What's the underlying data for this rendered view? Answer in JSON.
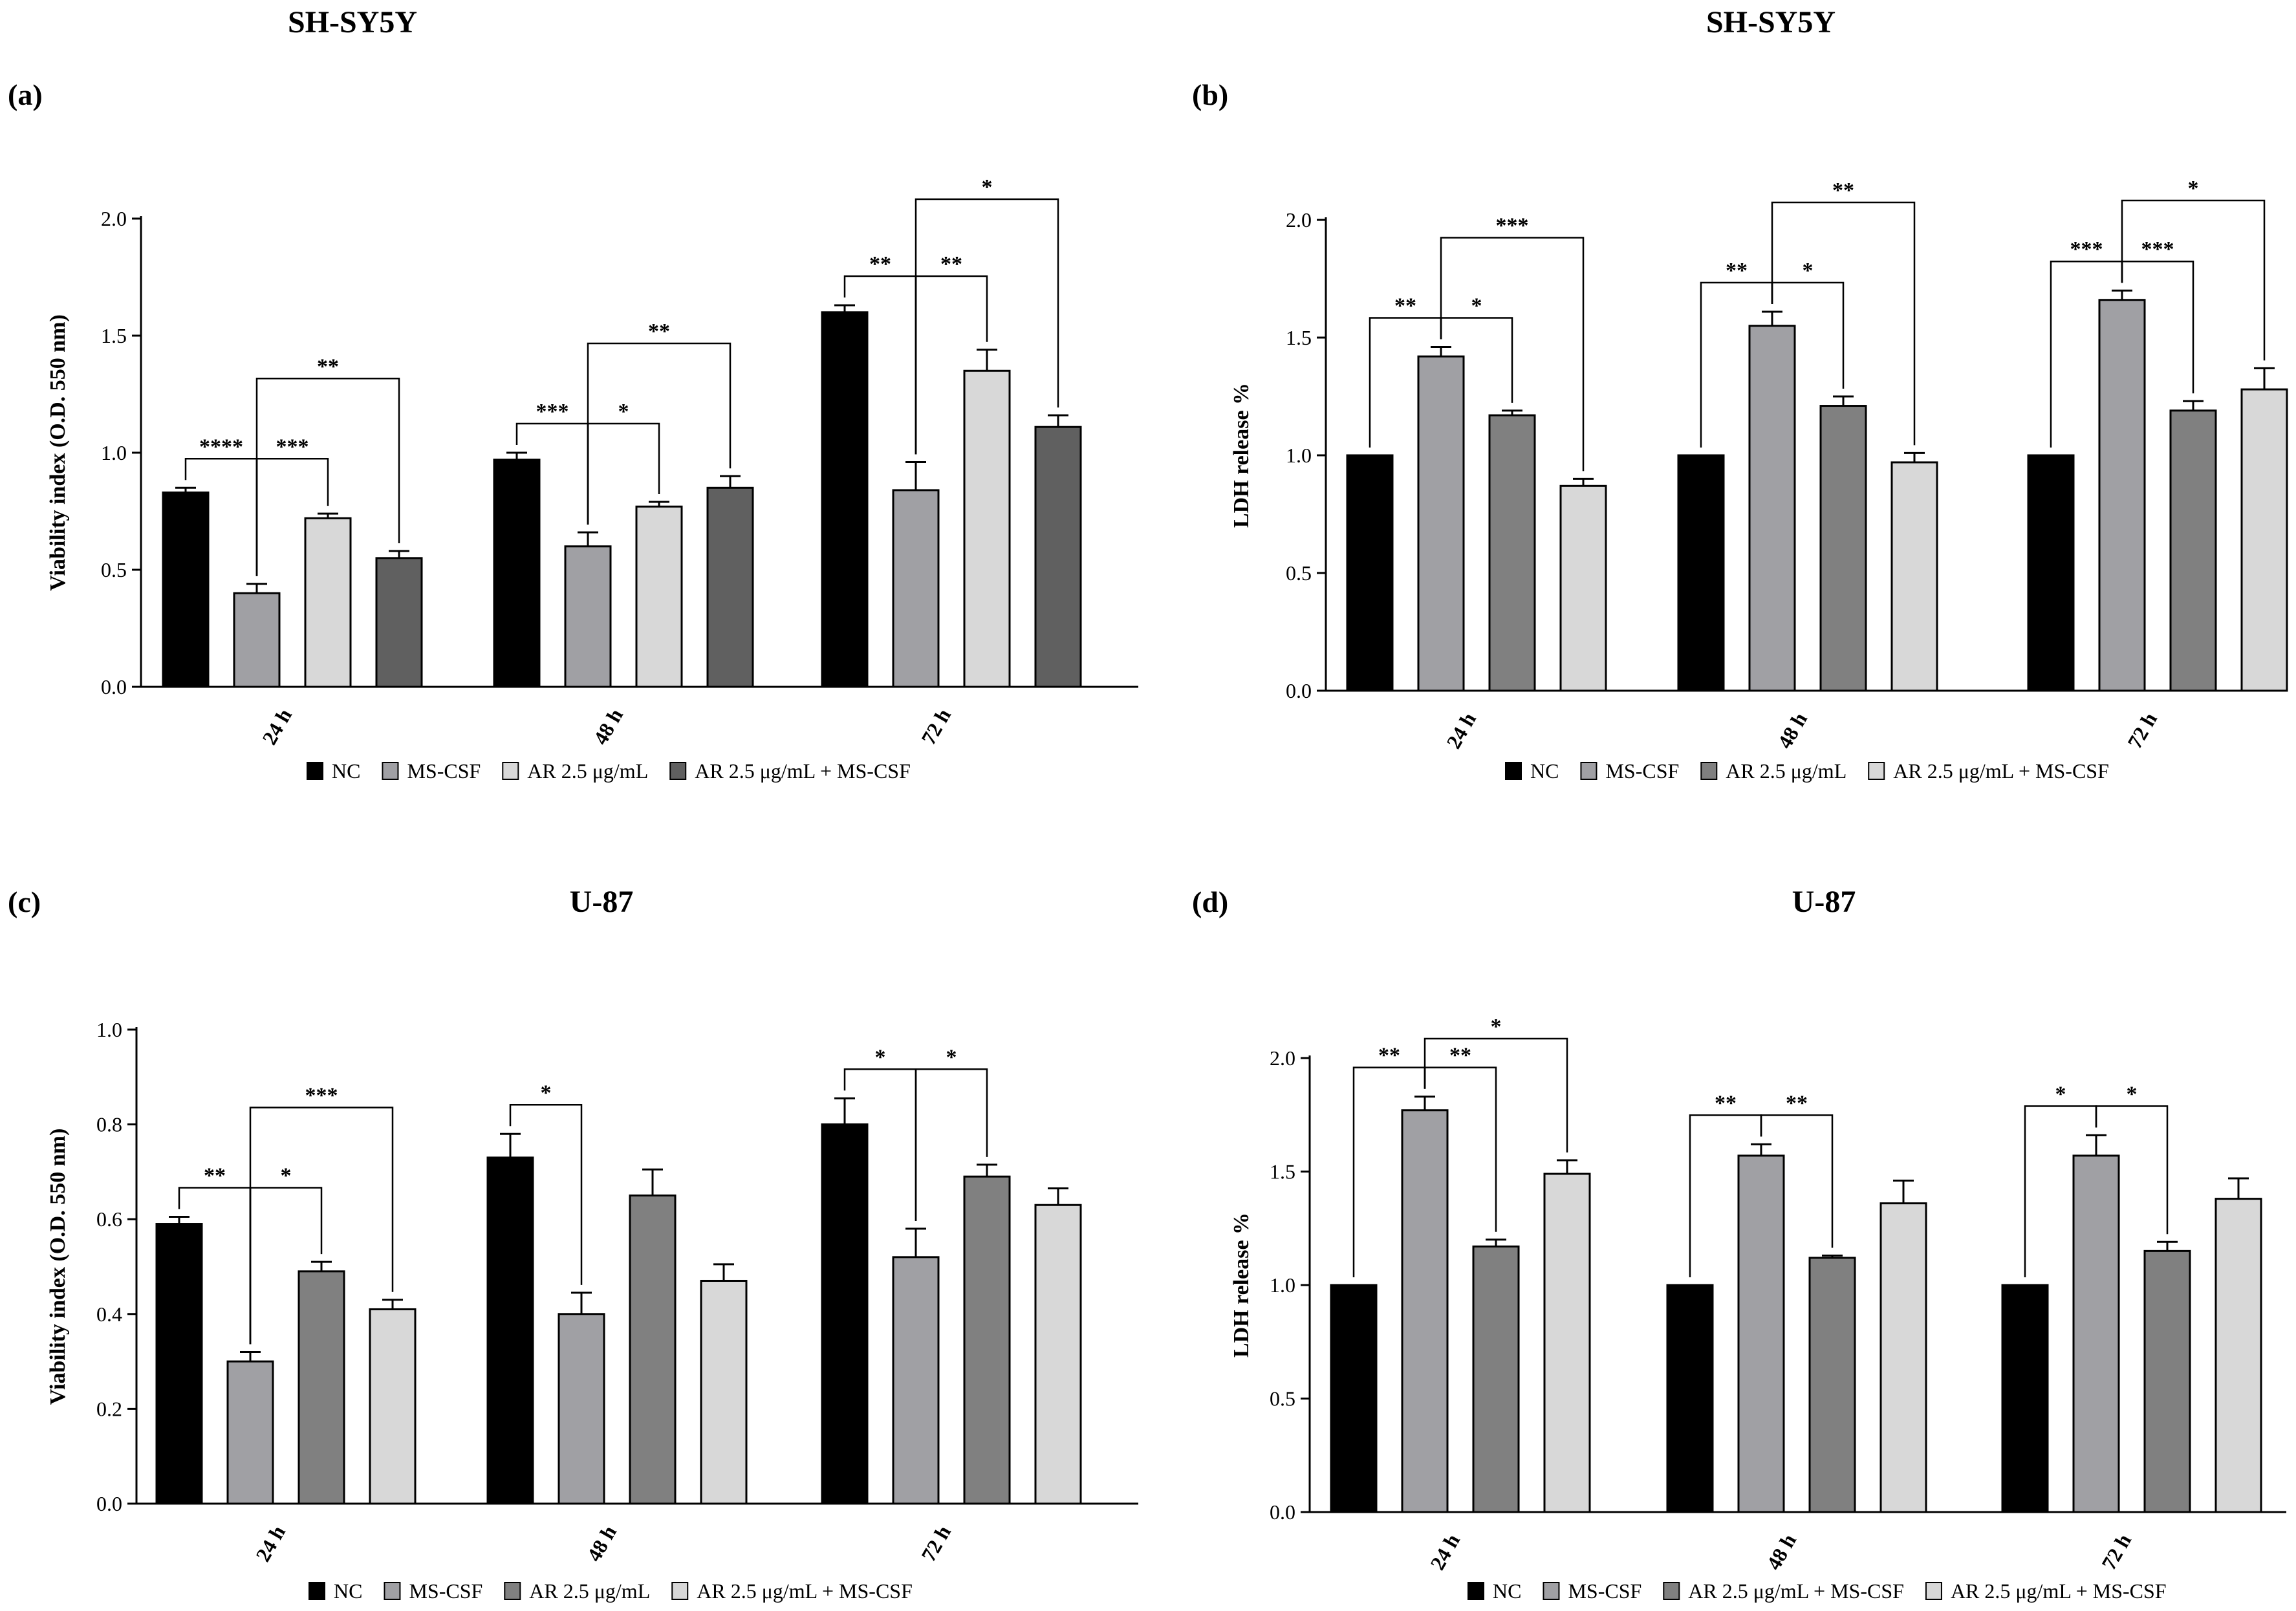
{
  "figure": {
    "panels": [
      {
        "letter": "(a)",
        "title": "SH-SY5Y"
      },
      {
        "letter": "(b)",
        "title": "SH-SY5Y"
      },
      {
        "letter": "(c)",
        "title": "U-87"
      },
      {
        "letter": "(d)",
        "title": "U-87"
      }
    ]
  },
  "chart_data": [
    {
      "type": "bar",
      "title": "SH-SY5Y",
      "panel_label": "(a)",
      "xlabel": "",
      "ylabel": "Viability index (O.D. 550 nm)",
      "ylim": [
        0,
        2.0
      ],
      "yticks": [
        "0.0",
        "0.5",
        "1.0",
        "1.5",
        "2.0"
      ],
      "categories": [
        "24 h",
        "48 h",
        "72 h"
      ],
      "series": [
        {
          "name": "NC",
          "color": "#000000",
          "values": [
            0.83,
            0.97,
            1.6
          ],
          "errors": [
            0.02,
            0.03,
            0.03
          ]
        },
        {
          "name": "MS-CSF",
          "color": "#a0a0a4",
          "values": [
            0.4,
            0.6,
            0.84
          ],
          "errors": [
            0.04,
            0.06,
            0.12
          ]
        },
        {
          "name": "AR 2.5 μg/mL",
          "color": "#d8d8d8",
          "values": [
            0.72,
            0.77,
            1.35
          ],
          "errors": [
            0.02,
            0.02,
            0.09
          ]
        },
        {
          "name": "AR 2.5 μg/mL + MS-CSF",
          "color": "#606060",
          "values": [
            0.55,
            0.85,
            1.11
          ],
          "errors": [
            0.03,
            0.05,
            0.05
          ]
        }
      ],
      "significance": [
        {
          "group": 0,
          "from": 0,
          "to": 1,
          "label": "****"
        },
        {
          "group": 0,
          "from": 1,
          "to": 2,
          "label": "***"
        },
        {
          "group": 0,
          "from": 1,
          "to": 3,
          "label": "**"
        },
        {
          "group": 1,
          "from": 0,
          "to": 1,
          "label": "***"
        },
        {
          "group": 1,
          "from": 1,
          "to": 2,
          "label": "*"
        },
        {
          "group": 1,
          "from": 1,
          "to": 3,
          "label": "**"
        },
        {
          "group": 2,
          "from": 0,
          "to": 1,
          "label": "**"
        },
        {
          "group": 2,
          "from": 1,
          "to": 2,
          "label": "**"
        },
        {
          "group": 2,
          "from": 1,
          "to": 3,
          "label": "*"
        }
      ],
      "legend_position": "bottom"
    },
    {
      "type": "bar",
      "title": "SH-SY5Y",
      "panel_label": "(b)",
      "xlabel": "",
      "ylabel": "LDH release %",
      "ylim": [
        0,
        2.0
      ],
      "yticks": [
        "0.0",
        "0.5",
        "1.0",
        "1.5",
        "2.0"
      ],
      "categories": [
        "24 h",
        "48 h",
        "72 h"
      ],
      "series": [
        {
          "name": "NC",
          "color": "#000000",
          "values": [
            1.0,
            1.0,
            1.0
          ],
          "errors": [
            0,
            0,
            0
          ]
        },
        {
          "name": "MS-CSF",
          "color": "#a0a0a4",
          "values": [
            1.42,
            1.55,
            1.66
          ],
          "errors": [
            0.04,
            0.06,
            0.04
          ]
        },
        {
          "name": "AR 2.5 μg/mL",
          "color": "#808080",
          "values": [
            1.17,
            1.21,
            1.19
          ],
          "errors": [
            0.02,
            0.04,
            0.04
          ]
        },
        {
          "name": "AR 2.5 μg/mL + MS-CSF",
          "color": "#d8d8d8",
          "values": [
            0.87,
            0.97,
            1.28
          ],
          "errors": [
            0.03,
            0.04,
            0.09
          ]
        }
      ],
      "significance": [
        {
          "group": 0,
          "from": 0,
          "to": 1,
          "label": "**"
        },
        {
          "group": 0,
          "from": 1,
          "to": 2,
          "label": "*"
        },
        {
          "group": 0,
          "from": 1,
          "to": 3,
          "label": "***"
        },
        {
          "group": 1,
          "from": 0,
          "to": 1,
          "label": "**"
        },
        {
          "group": 1,
          "from": 1,
          "to": 2,
          "label": "*"
        },
        {
          "group": 1,
          "from": 1,
          "to": 3,
          "label": "**"
        },
        {
          "group": 2,
          "from": 0,
          "to": 1,
          "label": "***"
        },
        {
          "group": 2,
          "from": 1,
          "to": 2,
          "label": "***"
        },
        {
          "group": 2,
          "from": 1,
          "to": 3,
          "label": "*"
        }
      ],
      "legend_position": "bottom"
    },
    {
      "type": "bar",
      "title": "U-87",
      "panel_label": "(c)",
      "xlabel": "",
      "ylabel": "Viability index (O.D. 550 nm)",
      "ylim": [
        0,
        1.0
      ],
      "yticks": [
        "0.0",
        "0.2",
        "0.4",
        "0.6",
        "0.8",
        "1.0"
      ],
      "categories": [
        "24 h",
        "48 h",
        "72 h"
      ],
      "series": [
        {
          "name": "NC",
          "color": "#000000",
          "values": [
            0.59,
            0.73,
            0.8
          ],
          "errors": [
            0.015,
            0.05,
            0.055
          ]
        },
        {
          "name": "MS-CSF",
          "color": "#a0a0a4",
          "values": [
            0.3,
            0.4,
            0.52
          ],
          "errors": [
            0.02,
            0.045,
            0.06
          ]
        },
        {
          "name": "AR 2.5 μg/mL",
          "color": "#808080",
          "values": [
            0.49,
            0.65,
            0.69
          ],
          "errors": [
            0.02,
            0.055,
            0.025
          ]
        },
        {
          "name": "AR 2.5 μg/mL + MS-CSF",
          "color": "#d8d8d8",
          "values": [
            0.41,
            0.47,
            0.63
          ],
          "errors": [
            0.02,
            0.035,
            0.035
          ]
        }
      ],
      "significance": [
        {
          "group": 0,
          "from": 0,
          "to": 1,
          "label": "**"
        },
        {
          "group": 0,
          "from": 1,
          "to": 2,
          "label": "*"
        },
        {
          "group": 0,
          "from": 1,
          "to": 3,
          "label": "***"
        },
        {
          "group": 1,
          "from": 0,
          "to": 1,
          "label": "*"
        },
        {
          "group": 2,
          "from": 0,
          "to": 1,
          "label": "*"
        },
        {
          "group": 2,
          "from": 1,
          "to": 2,
          "label": "*"
        }
      ],
      "legend_position": "bottom"
    },
    {
      "type": "bar",
      "title": "U-87",
      "panel_label": "(d)",
      "xlabel": "",
      "ylabel": "LDH release %",
      "ylim": [
        0,
        2.0
      ],
      "yticks": [
        "0.0",
        "0.5",
        "1.0",
        "1.5",
        "2.0"
      ],
      "categories": [
        "24 h",
        "48 h",
        "72 h"
      ],
      "series": [
        {
          "name": "NC",
          "color": "#000000",
          "values": [
            1.0,
            1.0,
            1.0
          ],
          "errors": [
            0,
            0,
            0
          ]
        },
        {
          "name": "MS-CSF",
          "color": "#a0a0a4",
          "values": [
            1.77,
            1.57,
            1.57
          ],
          "errors": [
            0.06,
            0.05,
            0.09
          ]
        },
        {
          "name": "AR 2.5 μg/mL + MS-CSF",
          "color": "#808080",
          "values": [
            1.17,
            1.12,
            1.15
          ],
          "errors": [
            0.03,
            0.01,
            0.04
          ]
        },
        {
          "name": "AR 2.5 μg/mL + MS-CSF",
          "color": "#d8d8d8",
          "values": [
            1.49,
            1.36,
            1.38
          ],
          "errors": [
            0.06,
            0.1,
            0.09
          ]
        }
      ],
      "significance": [
        {
          "group": 0,
          "from": 0,
          "to": 1,
          "label": "**"
        },
        {
          "group": 0,
          "from": 1,
          "to": 2,
          "label": "**"
        },
        {
          "group": 0,
          "from": 1,
          "to": 3,
          "label": "*"
        },
        {
          "group": 1,
          "from": 0,
          "to": 1,
          "label": "**"
        },
        {
          "group": 1,
          "from": 1,
          "to": 2,
          "label": "**"
        },
        {
          "group": 2,
          "from": 0,
          "to": 1,
          "label": "*"
        },
        {
          "group": 2,
          "from": 1,
          "to": 2,
          "label": "*"
        }
      ],
      "legend_position": "bottom"
    }
  ]
}
